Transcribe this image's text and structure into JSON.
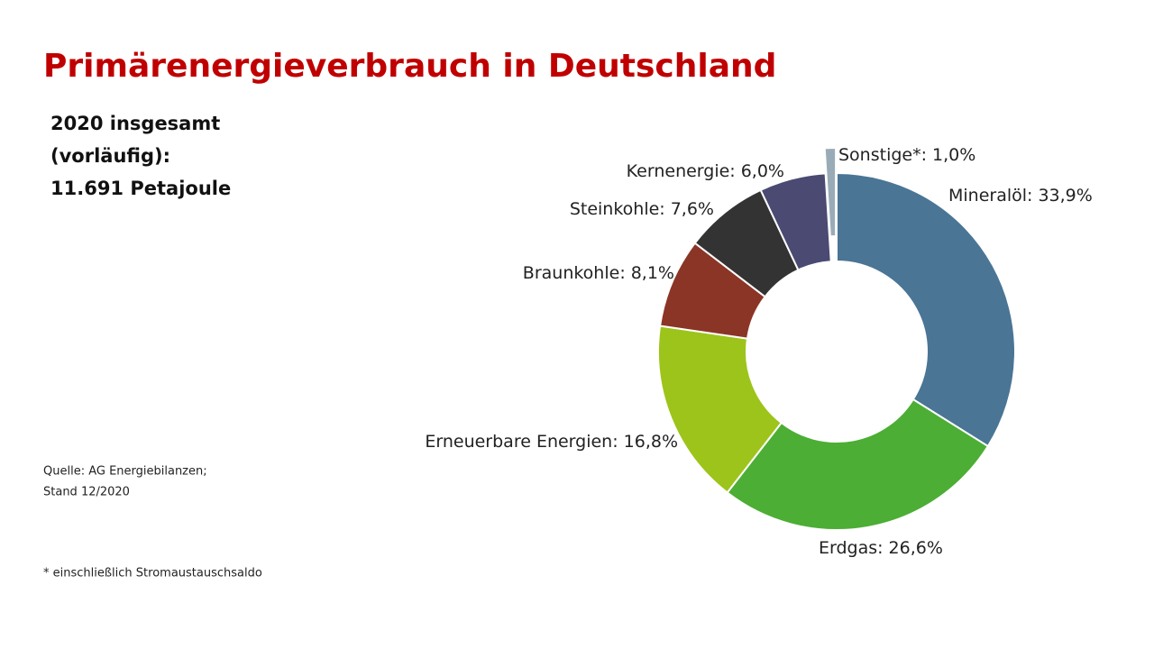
{
  "chart_data": {
    "type": "donut",
    "title": "Primärenergieverbrauch in Deutschland",
    "subtitle": [
      "2020 insgesamt",
      "(vorläufig):",
      "11.691 Petajoule"
    ],
    "source": [
      "Quelle: AG Energiebilanzen;",
      "Stand 12/2020"
    ],
    "footnote": "* einschließlich Stromaustauschsaldo",
    "categories": [
      "Mineralöl:",
      "Erdgas:",
      "Erneuerbare Energien:",
      "Braunkohle:",
      "Steinkohle:",
      "Kernenergie:",
      "Sonstige*:"
    ],
    "values": [
      33.9,
      26.6,
      16.8,
      8.1,
      7.6,
      6.0,
      1.0
    ],
    "value_labels": [
      "33,9%",
      "26,6%",
      "16,8%",
      "8,1%",
      "7,6%",
      "6,0%",
      "1,0%"
    ],
    "colors": [
      "#4a7595",
      "#4cae34",
      "#9dc41a",
      "#8b3526",
      "#333333",
      "#4a4a72",
      "#9aabb8"
    ]
  }
}
